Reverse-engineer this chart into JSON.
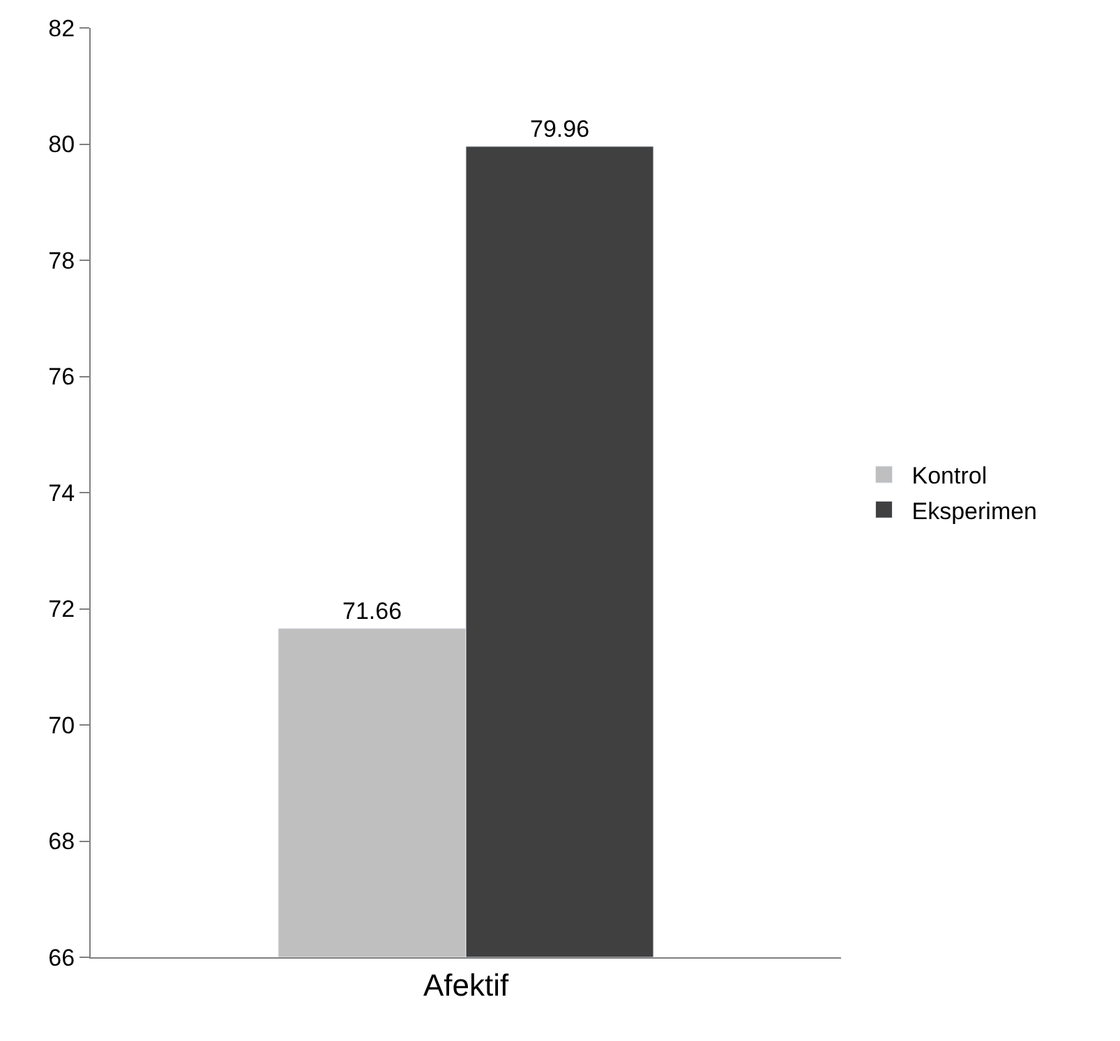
{
  "chart_data": {
    "type": "bar",
    "categories": [
      "Afektif"
    ],
    "series": [
      {
        "name": "Kontrol",
        "color": "#bfbfbf",
        "values": [
          71.66
        ]
      },
      {
        "name": "Eksperimen",
        "color": "#404040",
        "values": [
          79.96
        ]
      }
    ],
    "ylim": [
      66,
      82
    ],
    "yticks": [
      66,
      68,
      70,
      72,
      74,
      76,
      78,
      80,
      82
    ],
    "data_labels": true,
    "legend": "right"
  }
}
